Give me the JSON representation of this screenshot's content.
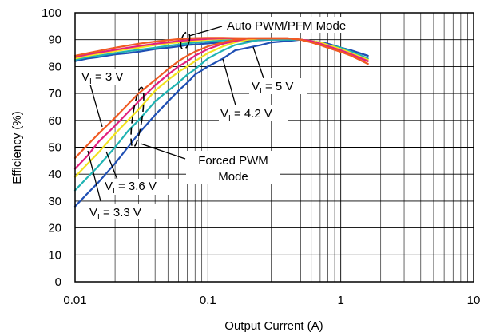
{
  "chart_data": {
    "type": "line",
    "title": "",
    "xlabel": "Output Current (A)",
    "ylabel": "Efficiency (%)",
    "xscale": "log",
    "xlim": [
      0.01,
      10
    ],
    "ylim": [
      0,
      100
    ],
    "grid": true,
    "x_tick_labels": [
      "0.01",
      "0.1",
      "1",
      "10"
    ],
    "y_tick_labels": [
      "0",
      "10",
      "20",
      "30",
      "40",
      "50",
      "60",
      "70",
      "80",
      "90",
      "100"
    ],
    "series": [
      {
        "color": "#1f4fb4",
        "x": [
          0.01,
          0.0125,
          0.015,
          0.02,
          0.025,
          0.03,
          0.04,
          0.05,
          0.06,
          0.07,
          0.08,
          0.1,
          0.13,
          0.16,
          0.2,
          0.25,
          0.3,
          0.4,
          0.5,
          0.6,
          0.7,
          0.8,
          1.0,
          1.2,
          1.6
        ],
        "y": [
          28,
          33,
          37,
          44,
          50,
          55,
          62,
          67,
          71,
          74,
          77,
          80,
          83,
          86,
          87,
          88,
          89,
          89.5,
          90,
          89.5,
          89,
          88.5,
          87,
          86,
          84
        ],
        "high_y": [
          82,
          83,
          83.5,
          84.5,
          85,
          85.5,
          86.5,
          87,
          87.5,
          88,
          88.2,
          88.6,
          89,
          89.3,
          89.6,
          89.8,
          90,
          90,
          90,
          89.5,
          89,
          88.5,
          87,
          86,
          84
        ]
      },
      {
        "color": "#1fb3b3",
        "x": [
          0.01,
          0.0125,
          0.015,
          0.02,
          0.025,
          0.03,
          0.04,
          0.05,
          0.06,
          0.07,
          0.08,
          0.1,
          0.13,
          0.16,
          0.2,
          0.25,
          0.3,
          0.4,
          0.5,
          0.6,
          0.7,
          0.8,
          1.0,
          1.2,
          1.6
        ],
        "y": [
          34,
          39,
          43,
          50,
          56,
          60,
          67,
          71,
          74,
          77,
          79,
          83,
          86,
          88,
          89,
          90,
          90,
          90,
          90,
          89.5,
          89,
          88,
          87,
          85.5,
          83
        ],
        "high_y": [
          82.5,
          83.5,
          84,
          85,
          85.7,
          86.2,
          87,
          87.7,
          88.2,
          88.6,
          88.9,
          89.3,
          89.7,
          90,
          90,
          90,
          90,
          90,
          90,
          89.5,
          89,
          88,
          87,
          85.5,
          83
        ]
      },
      {
        "color": "#f2e21e",
        "x": [
          0.01,
          0.0125,
          0.015,
          0.02,
          0.025,
          0.03,
          0.04,
          0.05,
          0.06,
          0.07,
          0.08,
          0.1,
          0.13,
          0.16,
          0.2,
          0.25,
          0.3,
          0.4,
          0.5,
          0.6,
          0.7,
          0.8,
          1.0,
          1.2,
          1.6
        ],
        "y": [
          39,
          44,
          48,
          55,
          60,
          64,
          71,
          75,
          78,
          80,
          82,
          85,
          87.5,
          89,
          90,
          90.5,
          90.5,
          90.5,
          90,
          89.5,
          89,
          88,
          86.5,
          85,
          82.5
        ],
        "high_y": [
          83,
          84,
          84.7,
          85.7,
          86.5,
          87,
          88,
          88.6,
          89,
          89.3,
          89.6,
          90,
          90.3,
          90.5,
          90.5,
          90.5,
          90.5,
          90.5,
          90,
          89.5,
          89,
          88,
          86.5,
          85,
          82.5
        ]
      },
      {
        "color": "#e3207e",
        "x": [
          0.01,
          0.0125,
          0.015,
          0.02,
          0.025,
          0.03,
          0.04,
          0.05,
          0.06,
          0.07,
          0.08,
          0.1,
          0.13,
          0.16,
          0.2,
          0.25,
          0.3,
          0.4,
          0.5,
          0.6,
          0.7,
          0.8,
          1.0,
          1.2,
          1.6
        ],
        "y": [
          42,
          47,
          52,
          58,
          63,
          67,
          73,
          77,
          80,
          82,
          84,
          86.5,
          88.5,
          89.5,
          90.5,
          90.5,
          90.5,
          90.5,
          90,
          89.5,
          88.5,
          87.5,
          86,
          84.5,
          82
        ],
        "high_y": [
          83.5,
          84.5,
          85.2,
          86.2,
          87,
          87.6,
          88.5,
          89,
          89.5,
          89.8,
          90,
          90.3,
          90.5,
          90.5,
          90.5,
          90.5,
          90.5,
          90.5,
          90,
          89.5,
          88.5,
          87.5,
          86,
          84.5,
          82
        ]
      },
      {
        "color": "#f05a22",
        "x": [
          0.01,
          0.0125,
          0.015,
          0.02,
          0.025,
          0.03,
          0.04,
          0.05,
          0.06,
          0.07,
          0.08,
          0.1,
          0.13,
          0.16,
          0.2,
          0.25,
          0.3,
          0.4,
          0.5,
          0.6,
          0.7,
          0.8,
          1.0,
          1.2,
          1.6
        ],
        "y": [
          46,
          51,
          55,
          61,
          66,
          70,
          75,
          79,
          82,
          84,
          85.5,
          87.5,
          89,
          90,
          90.5,
          90.5,
          90.5,
          90.5,
          90,
          89,
          88,
          87,
          85.5,
          84,
          81
        ],
        "high_y": [
          84,
          85,
          85.8,
          87,
          87.8,
          88.5,
          89.3,
          89.8,
          90.2,
          90.5,
          90.6,
          90.7,
          90.7,
          90.6,
          90.5,
          90.5,
          90.5,
          90.5,
          90,
          89,
          88,
          87,
          85.5,
          84,
          81
        ]
      }
    ],
    "annotations": {
      "auto_mode": "Auto PWM/PFM Mode",
      "forced_mode_line1": "Forced PWM",
      "forced_mode_line2": "Mode",
      "v3_prefix": "V",
      "v3_sub": "I",
      "v3_value": " = 3 V",
      "v33_prefix": "V",
      "v33_sub": "I",
      "v33_value": " = 3.3 V",
      "v36_prefix": "V",
      "v36_sub": "I",
      "v36_value": " = 3.6 V",
      "v42_prefix": "V",
      "v42_sub": "I",
      "v42_value": " = 4.2 V",
      "v5_prefix": "V",
      "v5_sub": "I",
      "v5_value": " = 5 V"
    }
  }
}
